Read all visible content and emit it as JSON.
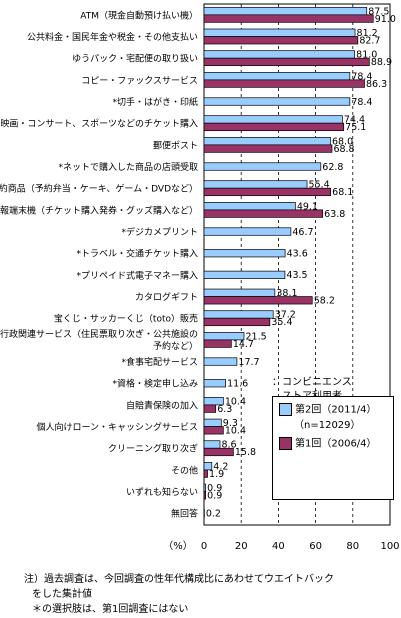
{
  "chart_data": {
    "type": "bar",
    "orientation": "horizontal",
    "xlabel": "（%）",
    "xlim": [
      0,
      100
    ],
    "xticks": [
      0,
      20,
      40,
      60,
      80,
      100
    ],
    "grid": "vertical dashed at 20, 40, 60, 80",
    "categories": [
      "ATM（現金自動預け払い機）",
      "公共料金・国民年金や税金・その他支払い",
      "ゆうパック・宅配便の取り扱い",
      "コピー・ファックスサービス",
      "*切手・はがき・印紙",
      "映画・コンサート、スポーツなどのチケット購入",
      "郵便ポスト",
      "*ネットで購入した商品の店頭受取",
      "予約商品（予約弁当・ケーキ、ゲーム・DVDなど）",
      "情報端末機（チケット購入発券・グッズ購入など）",
      "*デジカメプリント",
      "*トラベル・交通チケット購入",
      "*プリペイド式電子マネー購入",
      "カタログギフト",
      "宝くじ・サッカーくじ（toto）販売",
      "行政関連サービス（住民票取り次ぎ・公共施設の予約など）",
      "*食事宅配サービス",
      "*資格・検定申し込み",
      "自賠責保険の加入",
      "個人向けローン・キャッシングサービス",
      "クリーニング取り次ぎ",
      "その他",
      "いずれも知らない",
      "無回答"
    ],
    "series": [
      {
        "name": "第2回（2011/4）",
        "values": [
          87.5,
          81.2,
          81.0,
          78.4,
          78.4,
          74.4,
          68.0,
          62.8,
          55.4,
          49.1,
          46.7,
          43.6,
          43.5,
          38.1,
          37.2,
          21.5,
          17.7,
          11.6,
          10.4,
          9.3,
          8.6,
          4.2,
          0.9,
          0.2
        ]
      },
      {
        "name": "第1回（2006/4）",
        "values": [
          91.0,
          82.7,
          88.9,
          86.3,
          null,
          75.1,
          68.8,
          null,
          68.1,
          63.8,
          null,
          null,
          null,
          58.2,
          35.4,
          14.7,
          null,
          null,
          6.3,
          10.4,
          15.8,
          1.9,
          0.9,
          null
        ]
      }
    ],
    "legend": {
      "title": "：コンビニエンスストア利用者",
      "entries": [
        "第2回（2011/4）",
        "（n=12029）",
        "第1回（2006/4）"
      ],
      "placement": "bottom-right"
    },
    "colors": {
      "series1": "#99ccff",
      "series2": "#993366",
      "grid": "#000000"
    }
  },
  "labels": {
    "category_lines": [
      [
        "ATM（現金自動預け払い機）"
      ],
      [
        "公共料金・国民年金や税金・その他支払い"
      ],
      [
        "ゆうパック・宅配便の取り扱い"
      ],
      [
        "コピー・ファックスサービス"
      ],
      [
        "*切手・はがき・印紙"
      ],
      [
        "映画・コンサート、スポーツなどのチケット購入"
      ],
      [
        "郵便ポスト"
      ],
      [
        "*ネットで購入した商品の店頭受取"
      ],
      [
        "予約商品（予約弁当・ケーキ、ゲーム・DVDなど）"
      ],
      [
        "情報端末機（チケット購入発券・グッズ購入など）"
      ],
      [
        "*デジカメプリント"
      ],
      [
        "*トラベル・交通チケット購入"
      ],
      [
        "*プリペイド式電子マネー購入"
      ],
      [
        "カタログギフト"
      ],
      [
        "宝くじ・サッカーくじ（toto）販売"
      ],
      [
        "行政関連サービス（住民票取り次ぎ・公共施設の",
        "予約など）"
      ],
      [
        "*食事宅配サービス"
      ],
      [
        "*資格・検定申し込み"
      ],
      [
        "自賠責保険の加入"
      ],
      [
        "個人向けローン・キャッシングサービス"
      ],
      [
        "クリーニング取り次ぎ"
      ],
      [
        "その他"
      ],
      [
        "いずれも知らない"
      ],
      [
        "無回答"
      ]
    ]
  },
  "legend_text": {
    "title_line1": "：コンビニエンス",
    "title_line2": "ストア利用者",
    "series1_line1": "第2回（2011/4）",
    "series1_line2": "（n=12029）",
    "series2": "第1回（2006/4）"
  },
  "notes": {
    "line1": "注）過去調査は、今回調査の性年代構成比にあわせてウエイトバック",
    "line2": "をした集計値",
    "line3": "＊の選択肢は、第1回調査にはない"
  }
}
